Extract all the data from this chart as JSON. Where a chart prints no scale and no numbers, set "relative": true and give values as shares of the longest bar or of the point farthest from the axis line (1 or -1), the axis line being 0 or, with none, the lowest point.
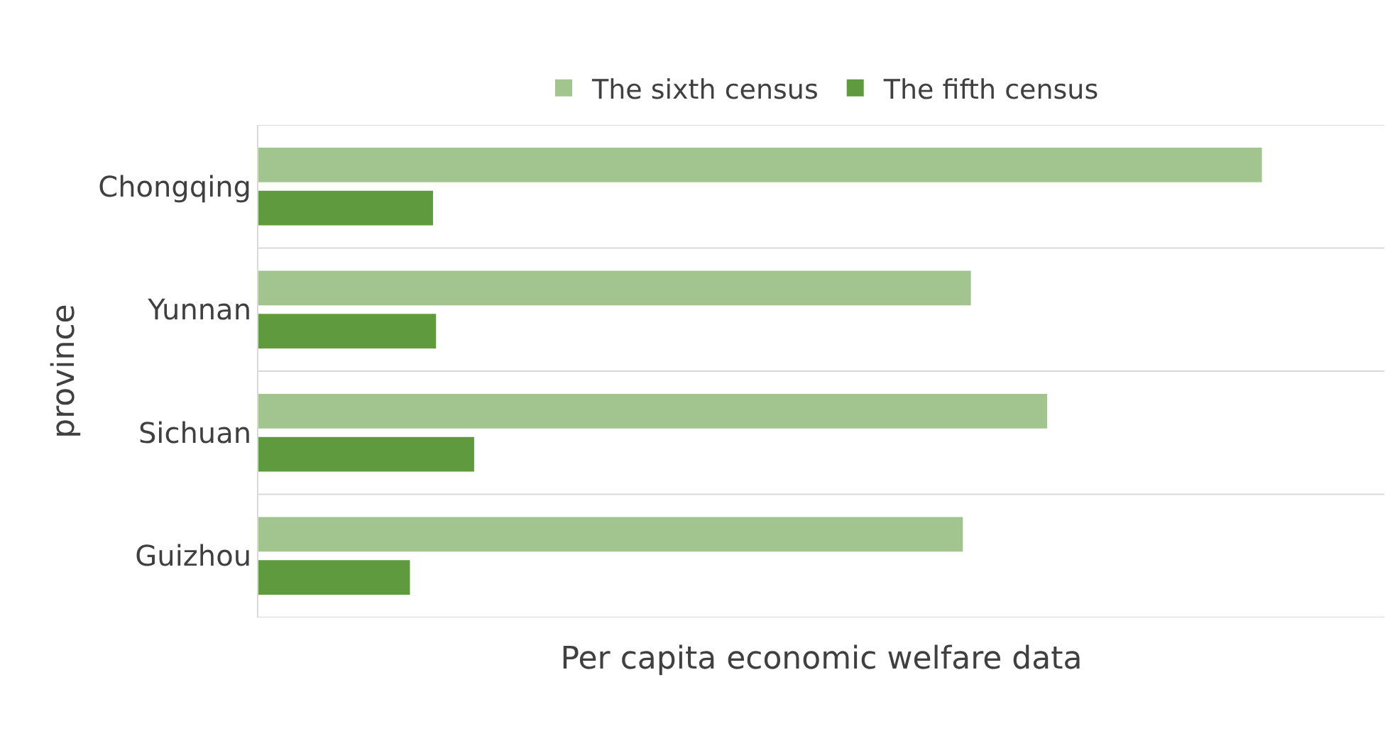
{
  "chart_data": {
    "type": "bar",
    "orientation": "horizontal",
    "relative": true,
    "xlabel": "Per capita economic welfare data",
    "ylabel": "province",
    "categories": [
      "Chongqing",
      "Yunnan",
      "Sichuan",
      "Guizhou"
    ],
    "series": [
      {
        "name": "The sixth census",
        "color": "#a2c48e",
        "values": [
          1,
          0.71,
          0.786,
          0.702
        ]
      },
      {
        "name": "The fifth census",
        "color": "#5f9a3e",
        "values": [
          0.174,
          0.177,
          0.215,
          0.151
        ]
      }
    ],
    "grid": "y",
    "legend": "top"
  }
}
